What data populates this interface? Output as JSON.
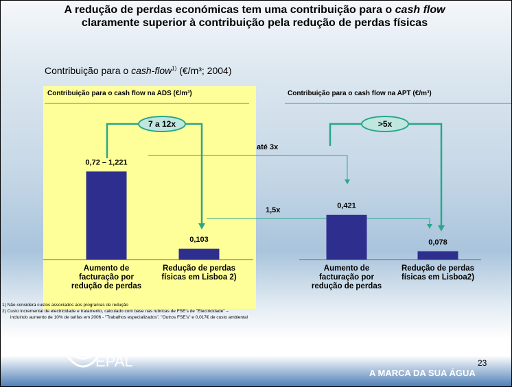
{
  "slide": {
    "title": [
      "A redução de perdas económicas tem uma contribuição para o",
      "cash flow",
      "claramente superior à contribuição pela redução de perdas físicas"
    ],
    "subtitle": [
      "Contribuição para o",
      "cash-flow",
      "1)",
      "(€/m³; 2004)"
    ],
    "annotations": [
      "até 3x",
      "1,5x"
    ],
    "footnotes": [
      "1) Não considera custos associados aos programas de redução",
      "2) Custo incremental de electricidade e tratamento, calculado com base nas rubricas de FSE's de \"Electricidade\" –",
      "incluindo aumento de 10% de tarifas em 2006 - \"Trabalhos especializados\", \"Outros FSE's\" e 0,017€ de custo ambiental"
    ],
    "logo": "EPAL",
    "page_number": "23",
    "tagline": "A MARCA DA SUA ÁGUA"
  },
  "chart_data": [
    {
      "type": "bar",
      "title": "Contribuição para o cash flow na ADS (€/m³)",
      "categories": [
        "Aumento de facturação por redução de perdas",
        "Redução de perdas físicas em Lisboa 2)"
      ],
      "values": [
        0.83,
        0.103
      ],
      "value_labels": [
        "0,72 – 1,221",
        "0,103"
      ],
      "color": "#2e2e8f",
      "annotation": "7 a 12x"
    },
    {
      "type": "bar",
      "title": "Contribuição para o cash flow na APT (€/m³)",
      "categories": [
        "Aumento de facturação por redução de perdas",
        "Redução de perdas físicas em Lisboa2)"
      ],
      "values": [
        0.421,
        0.078
      ],
      "value_labels": [
        "0,421",
        "0,078"
      ],
      "color": "#2e2e8f",
      "annotation": ">5x"
    }
  ]
}
